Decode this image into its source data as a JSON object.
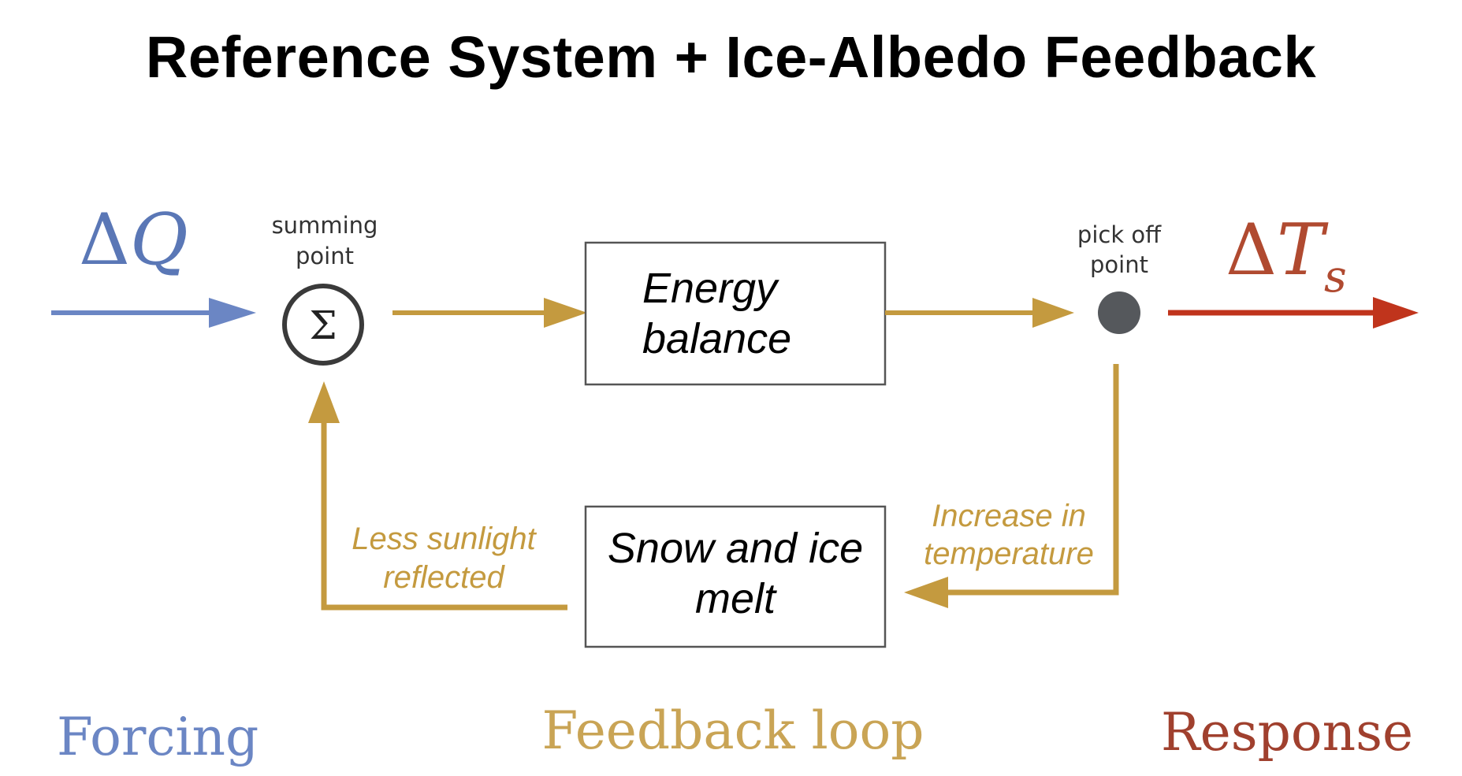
{
  "title": "Reference System + Ice-Albedo Feedback",
  "colors": {
    "forcing": "#6b86c4",
    "feedback": "#c49a3f",
    "response": "#c0341c",
    "node": "#55585c"
  },
  "forcing_symbol": {
    "delta": "Δ",
    "var": "Q"
  },
  "response_symbol": {
    "delta": "Δ",
    "var": "T",
    "subscript": "s"
  },
  "summing_point": {
    "label_line1": "summing",
    "label_line2": "point",
    "symbol": "Σ"
  },
  "pick_off_point": {
    "label_line1": "pick off",
    "label_line2": "point"
  },
  "energy_box": {
    "line1": "Energy",
    "line2": "balance"
  },
  "melt_box": {
    "line1": "Snow and ice",
    "line2": "melt"
  },
  "feedback_labels": {
    "left_line1": "Less sunlight",
    "left_line2": "reflected",
    "right_line1": "Increase in",
    "right_line2": "temperature"
  },
  "sections": {
    "forcing": "Forcing",
    "feedback": "Feedback loop",
    "response": "Response"
  }
}
